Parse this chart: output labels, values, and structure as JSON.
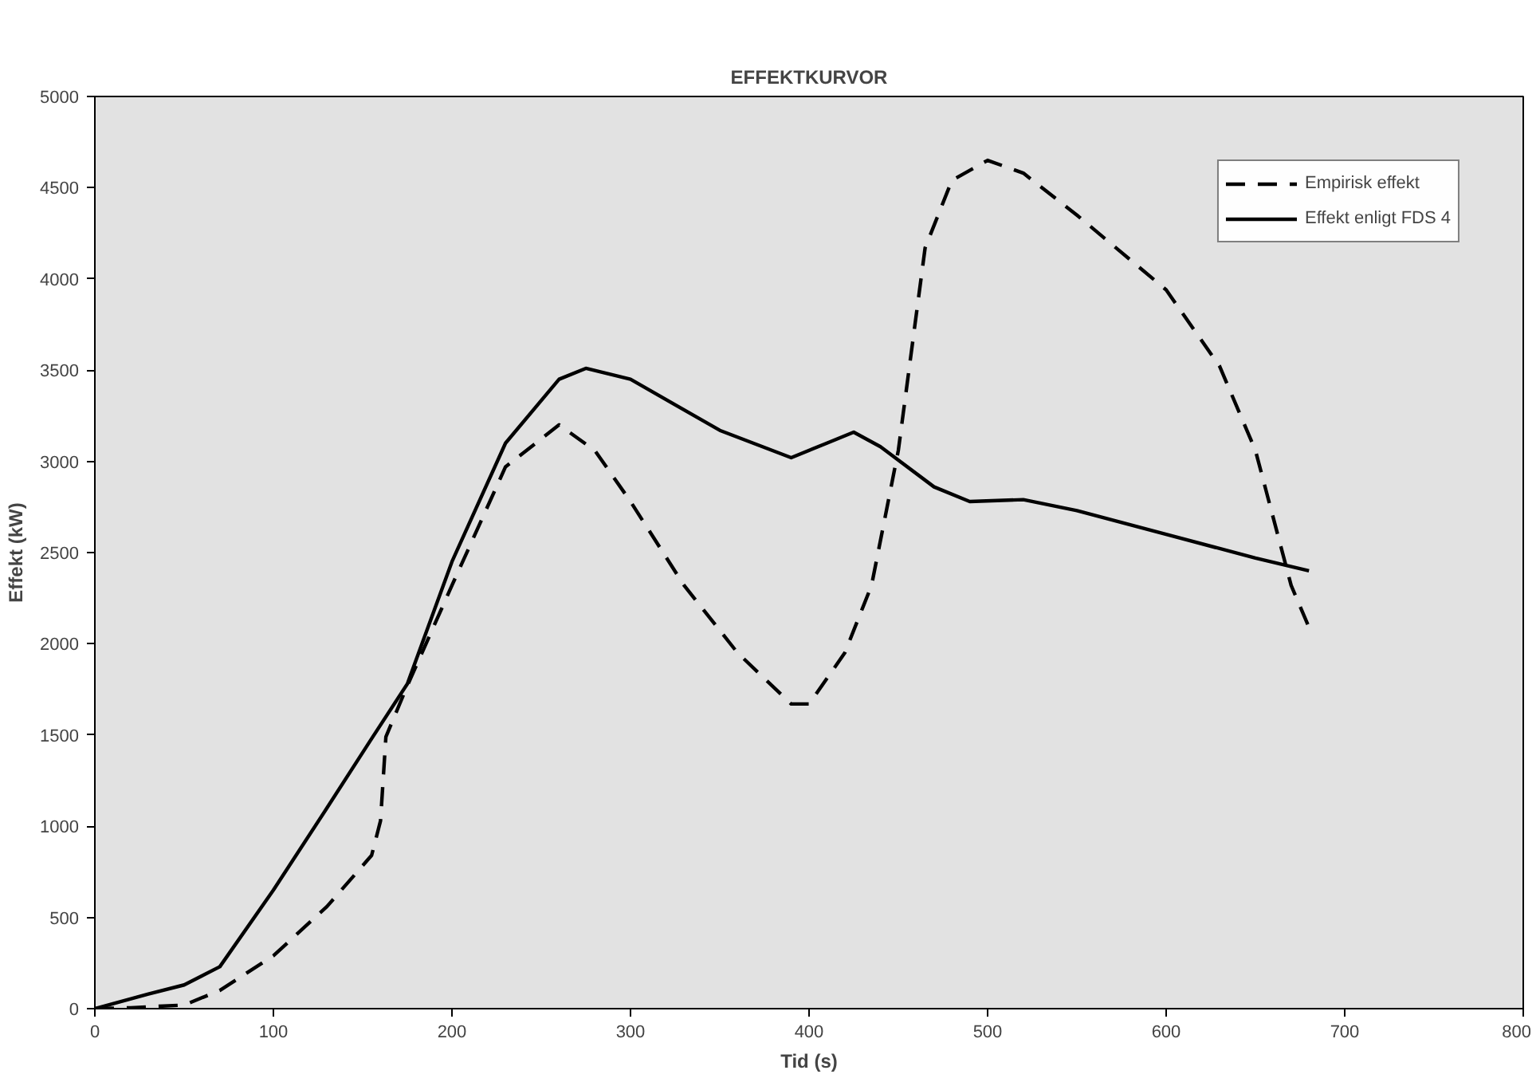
{
  "chart_data": {
    "type": "line",
    "title": "EFFEKTKURVOR",
    "xlabel": "Tid (s)",
    "ylabel": "Effekt (kW)",
    "xlim": [
      0,
      800
    ],
    "xticks": [
      0,
      100,
      200,
      300,
      400,
      500,
      600,
      700,
      800
    ],
    "ylim": [
      0,
      5000
    ],
    "yticks": [
      0,
      500,
      1000,
      1500,
      2000,
      2500,
      3000,
      3500,
      4000,
      4500,
      5000
    ],
    "grid": false,
    "legend": "top right",
    "marker": "none",
    "series": [
      {
        "name": "Empirisk effekt",
        "color": "#000000",
        "line_style": "dashed",
        "x": [
          0,
          20,
          50,
          70,
          100,
          130,
          155,
          160,
          163,
          175,
          200,
          230,
          260,
          280,
          300,
          330,
          360,
          390,
          400,
          420,
          435,
          450,
          465,
          480,
          500,
          520,
          550,
          600,
          630,
          650,
          670,
          680
        ],
        "values": [
          0,
          5,
          20,
          100,
          290,
          560,
          840,
          1030,
          1490,
          1770,
          2320,
          2970,
          3200,
          3060,
          2780,
          2320,
          1950,
          1670,
          1670,
          1950,
          2320,
          3060,
          4170,
          4540,
          4650,
          4580,
          4350,
          3940,
          3520,
          3060,
          2320,
          2090
        ]
      },
      {
        "name": "Effekt enligt FDS 4",
        "color": "#000000",
        "line_style": "solid",
        "x": [
          0,
          30,
          50,
          70,
          100,
          130,
          155,
          175,
          200,
          230,
          260,
          275,
          300,
          350,
          390,
          410,
          425,
          440,
          470,
          490,
          520,
          550,
          600,
          650,
          680
        ],
        "values": [
          0,
          80,
          130,
          230,
          650,
          1100,
          1480,
          1780,
          2450,
          3100,
          3450,
          3510,
          3450,
          3170,
          3020,
          3100,
          3160,
          3080,
          2860,
          2780,
          2790,
          2730,
          2600,
          2470,
          2400
        ]
      }
    ]
  }
}
